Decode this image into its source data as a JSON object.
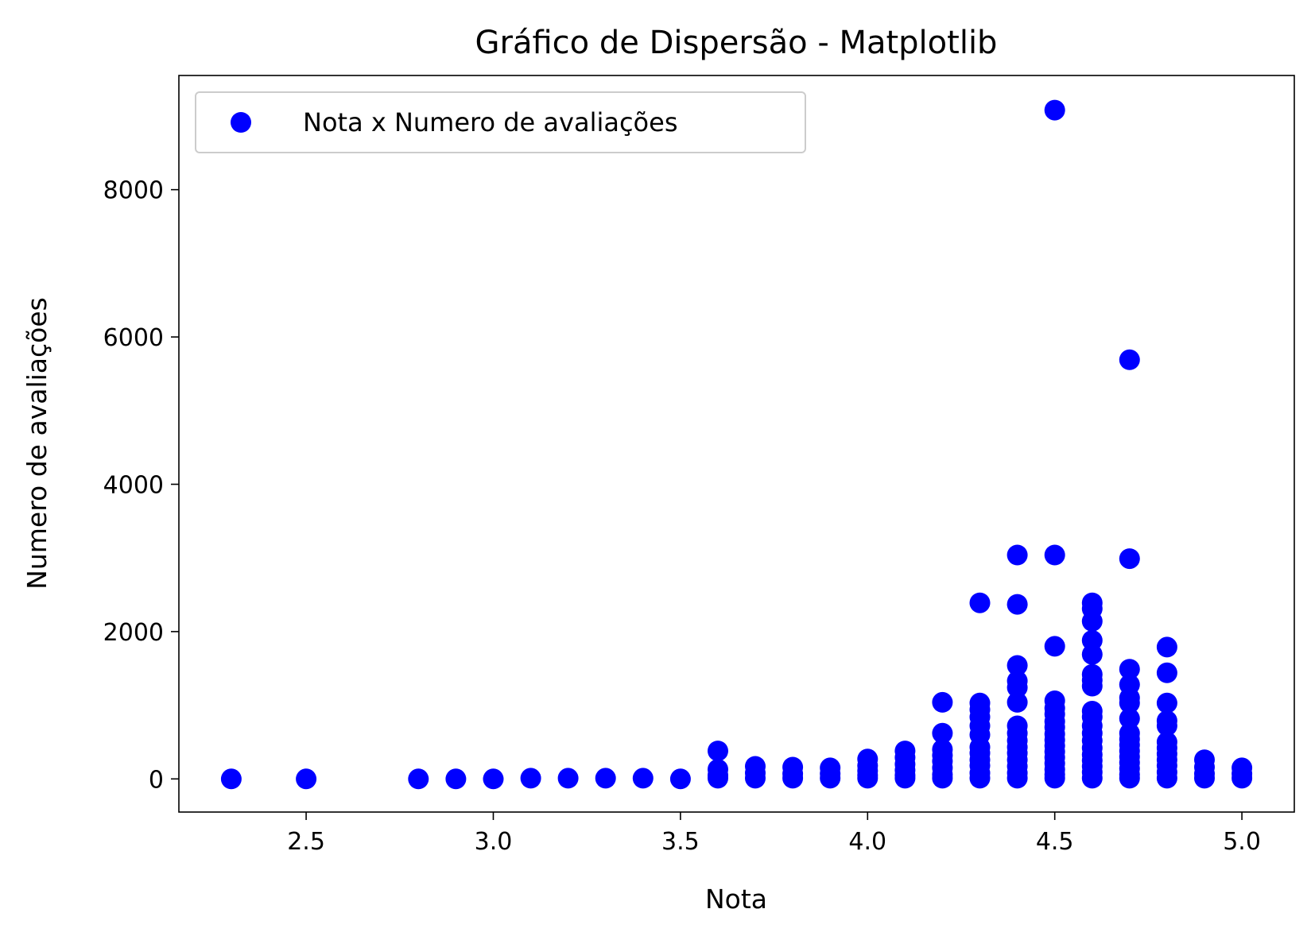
{
  "chart_data": {
    "type": "scatter",
    "title": "Gráfico de Dispersão - Matplotlib",
    "xlabel": "Nota",
    "ylabel": "Numero de avaliações",
    "xlim": [
      2.16,
      5.14
    ],
    "ylim": [
      -450,
      9550
    ],
    "xticks": [
      2.5,
      3.0,
      3.5,
      4.0,
      4.5,
      5.0
    ],
    "xtick_labels": [
      "2.5",
      "3.0",
      "3.5",
      "4.0",
      "4.5",
      "5.0"
    ],
    "yticks": [
      0,
      2000,
      4000,
      6000,
      8000
    ],
    "ytick_labels": [
      "0",
      "2000",
      "4000",
      "6000",
      "8000"
    ],
    "grid": false,
    "legend": {
      "position": "upper-left",
      "entries": [
        "Nota x Numero de avaliações"
      ]
    },
    "colors": {
      "marker": "#0000ff",
      "frame": "#000000",
      "legend_border": "#cccccc"
    },
    "series": [
      {
        "name": "Nota x Numero de avaliações",
        "x": [
          2.3,
          2.5,
          2.8,
          2.9,
          3.0,
          3.1,
          3.2,
          3.3,
          3.4,
          3.5,
          3.6,
          3.6,
          3.6,
          3.6,
          3.7,
          3.7,
          3.7,
          3.8,
          3.8,
          3.8,
          3.9,
          3.9,
          3.9,
          4.0,
          4.0,
          4.0,
          4.0,
          4.0,
          4.1,
          4.1,
          4.1,
          4.1,
          4.1,
          4.1,
          4.2,
          4.2,
          4.2,
          4.2,
          4.2,
          4.2,
          4.2,
          4.2,
          4.3,
          4.3,
          4.3,
          4.3,
          4.3,
          4.3,
          4.3,
          4.3,
          4.3,
          4.3,
          4.3,
          4.3,
          4.4,
          4.4,
          4.4,
          4.4,
          4.4,
          4.4,
          4.4,
          4.4,
          4.4,
          4.4,
          4.4,
          4.4,
          4.4,
          4.4,
          4.4,
          4.5,
          4.5,
          4.5,
          4.5,
          4.5,
          4.5,
          4.5,
          4.5,
          4.5,
          4.5,
          4.5,
          4.5,
          4.5,
          4.5,
          4.5,
          4.5,
          4.5,
          4.6,
          4.6,
          4.6,
          4.6,
          4.6,
          4.6,
          4.6,
          4.6,
          4.6,
          4.6,
          4.6,
          4.6,
          4.6,
          4.6,
          4.6,
          4.6,
          4.6,
          4.6,
          4.6,
          4.7,
          4.7,
          4.7,
          4.7,
          4.7,
          4.7,
          4.7,
          4.7,
          4.7,
          4.7,
          4.7,
          4.7,
          4.7,
          4.7,
          4.7,
          4.7,
          4.8,
          4.8,
          4.8,
          4.8,
          4.8,
          4.8,
          4.8,
          4.8,
          4.8,
          4.8,
          4.8,
          4.8,
          4.9,
          4.9,
          4.9,
          4.9,
          5.0,
          5.0,
          5.0
        ],
        "y": [
          0,
          0,
          0,
          0,
          0,
          10,
          10,
          10,
          10,
          0,
          380,
          130,
          50,
          10,
          170,
          80,
          10,
          160,
          70,
          10,
          150,
          70,
          10,
          270,
          180,
          110,
          50,
          10,
          380,
          290,
          200,
          120,
          50,
          10,
          1040,
          620,
          400,
          320,
          240,
          150,
          60,
          10,
          2390,
          1030,
          940,
          840,
          720,
          600,
          430,
          350,
          260,
          180,
          80,
          10,
          3040,
          2370,
          1540,
          1330,
          1240,
          1040,
          720,
          620,
          520,
          430,
          350,
          260,
          170,
          80,
          10,
          9080,
          3040,
          1800,
          1060,
          960,
          880,
          780,
          700,
          610,
          530,
          450,
          370,
          290,
          210,
          130,
          60,
          10,
          2390,
          2310,
          2140,
          1880,
          1690,
          1420,
          1340,
          1260,
          920,
          840,
          720,
          620,
          520,
          420,
          330,
          250,
          170,
          90,
          10,
          5690,
          2990,
          1490,
          1280,
          1100,
          1030,
          820,
          620,
          540,
          460,
          380,
          300,
          220,
          140,
          60,
          10,
          1790,
          1440,
          1030,
          790,
          720,
          500,
          420,
          340,
          260,
          180,
          90,
          10,
          260,
          160,
          70,
          10,
          150,
          70,
          10
        ]
      }
    ]
  }
}
